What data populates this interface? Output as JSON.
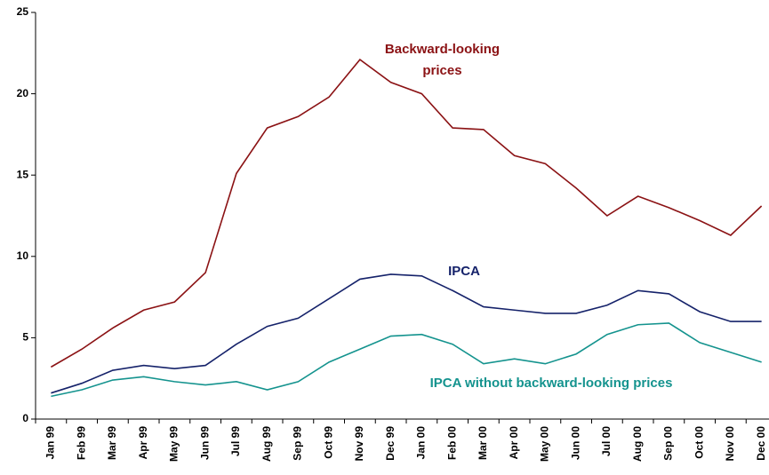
{
  "chart_data": {
    "type": "line",
    "categories": [
      "Jan 99",
      "Feb 99",
      "Mar 99",
      "Apr 99",
      "May 99",
      "Jun 99",
      "Jul 99",
      "Aug 99",
      "Sep 99",
      "Oct 99",
      "Nov 99",
      "Dec 99",
      "Jan 00",
      "Feb 00",
      "Mar 00",
      "Apr 00",
      "May 00",
      "Jun 00",
      "Jul 00",
      "Aug 00",
      "Sep 00",
      "Oct 00",
      "Nov 00",
      "Dec 00"
    ],
    "series": [
      {
        "name": "Backward-looking prices",
        "color": "#8b1214",
        "values": [
          3.2,
          4.3,
          5.6,
          6.7,
          7.2,
          9.0,
          15.1,
          17.9,
          18.6,
          19.8,
          22.1,
          20.7,
          20.0,
          17.9,
          17.8,
          16.2,
          15.7,
          14.2,
          12.5,
          13.7,
          13.0,
          12.2,
          11.3,
          13.1
        ]
      },
      {
        "name": "IPCA",
        "color": "#15226a",
        "values": [
          1.6,
          2.2,
          3.0,
          3.3,
          3.1,
          3.3,
          4.6,
          5.7,
          6.2,
          7.4,
          8.6,
          8.9,
          8.8,
          7.9,
          6.9,
          6.7,
          6.5,
          6.5,
          7.0,
          7.9,
          7.7,
          6.6,
          6.0,
          6.0
        ]
      },
      {
        "name": "IPCA without backward-looking prices",
        "color": "#14938e",
        "values": [
          1.4,
          1.8,
          2.4,
          2.6,
          2.3,
          2.1,
          2.3,
          1.8,
          2.3,
          3.5,
          4.3,
          5.1,
          5.2,
          4.6,
          3.4,
          3.7,
          3.4,
          4.0,
          5.2,
          5.8,
          5.9,
          4.7,
          4.1,
          3.5
        ]
      }
    ],
    "ylim": [
      0,
      25
    ],
    "yticks": [
      0,
      5,
      10,
      15,
      20,
      25
    ],
    "grid": false
  }
}
